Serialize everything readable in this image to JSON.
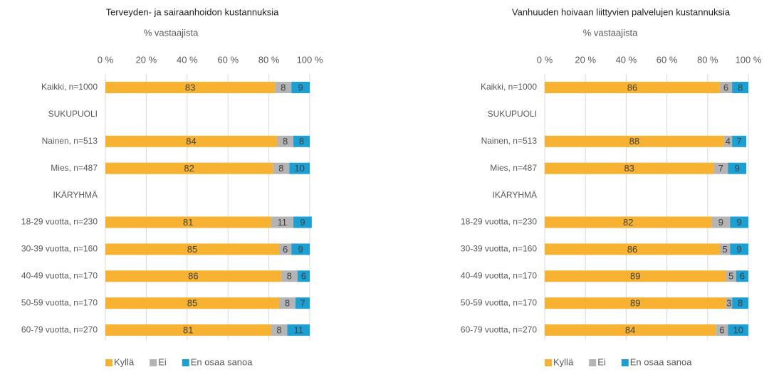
{
  "chart_data": [
    {
      "type": "stacked-bar",
      "title": "Terveyden- ja sairaanhoidon kustannuksia",
      "x_label": "% vastaajista",
      "categories": [
        "Kaikki, n=1000",
        "SUKUPUOLI",
        "Nainen, n=513",
        "Mies, n=487",
        "IKÄRYHMÄ",
        "18-29 vuotta, n=230",
        "30-39 vuotta, n=160",
        "40-49 vuotta, n=170",
        "50-59 vuotta, n=170",
        "60-79 vuotta, n=270"
      ],
      "series": [
        {
          "name": "Kyllä",
          "color": "#f7b231",
          "values": [
            83,
            null,
            84,
            82,
            null,
            81,
            85,
            86,
            85,
            81
          ]
        },
        {
          "name": "Ei",
          "color": "#b4b4b4",
          "values": [
            8,
            null,
            8,
            8,
            null,
            11,
            6,
            8,
            8,
            8
          ]
        },
        {
          "name": "En osaa sanoa",
          "color": "#1c9fd3",
          "values": [
            9,
            null,
            8,
            10,
            null,
            9,
            9,
            6,
            7,
            11
          ]
        }
      ],
      "xlim": [
        0,
        100
      ],
      "xticks": [
        {
          "value": 0,
          "label": "0 %"
        },
        {
          "value": 20,
          "label": "20 %"
        },
        {
          "value": 40,
          "label": "40 %"
        },
        {
          "value": 60,
          "label": "60 %"
        },
        {
          "value": 80,
          "label": "80 %"
        },
        {
          "value": 100,
          "label": "100 %"
        }
      ],
      "grid": true,
      "legend": "bottom"
    },
    {
      "type": "stacked-bar",
      "title": "Vanhuuden hoivaan liittyvien palvelujen kustannuksia",
      "x_label": "% vastaajista",
      "categories": [
        "Kaikki, n=1000",
        "SUKUPUOLI",
        "Nainen, n=513",
        "Mies, n=487",
        "IKÄRYHMÄ",
        "18-29 vuotta, n=230",
        "30-39 vuotta, n=160",
        "40-49 vuotta, n=170",
        "50-59 vuotta, n=170",
        "60-79 vuotta, n=270"
      ],
      "series": [
        {
          "name": "Kyllä",
          "color": "#f7b231",
          "values": [
            86,
            null,
            88,
            83,
            null,
            82,
            86,
            89,
            89,
            84
          ]
        },
        {
          "name": "Ei",
          "color": "#b4b4b4",
          "values": [
            6,
            null,
            4,
            7,
            null,
            9,
            5,
            5,
            3,
            6
          ]
        },
        {
          "name": "En osaa sanoa",
          "color": "#1c9fd3",
          "values": [
            8,
            null,
            7,
            9,
            null,
            9,
            9,
            6,
            8,
            10
          ]
        }
      ],
      "xlim": [
        0,
        100
      ],
      "xticks": [
        {
          "value": 0,
          "label": "0 %"
        },
        {
          "value": 20,
          "label": "20 %"
        },
        {
          "value": 40,
          "label": "40 %"
        },
        {
          "value": 60,
          "label": "60 %"
        },
        {
          "value": 80,
          "label": "80 %"
        },
        {
          "value": 100,
          "label": "100 %"
        }
      ],
      "grid": true,
      "legend": "bottom"
    }
  ]
}
